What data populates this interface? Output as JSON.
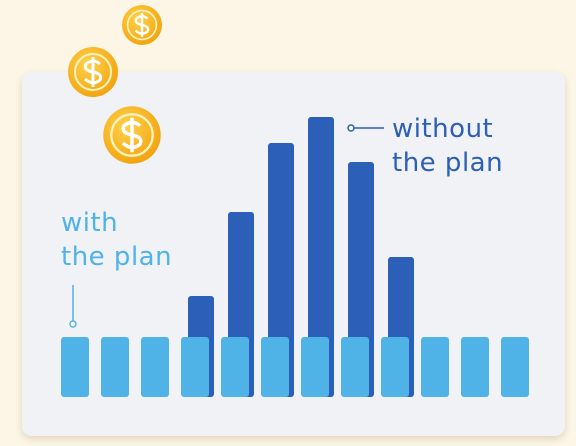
{
  "chart_data": {
    "type": "bar",
    "categories": [
      null,
      null,
      null,
      null,
      null,
      null,
      null,
      null,
      null,
      null,
      null,
      null
    ],
    "series": [
      {
        "name": "without the plan",
        "color": "#2c5fb8",
        "values": [
          null,
          null,
          null,
          101,
          185,
          254,
          280,
          235,
          140,
          null,
          null,
          null
        ]
      },
      {
        "name": "with the plan",
        "color": "#4fb3e8",
        "values": [
          60,
          60,
          60,
          60,
          60,
          60,
          60,
          60,
          60,
          60,
          60,
          60
        ]
      }
    ],
    "ylim": [
      0,
      300
    ]
  }
}
